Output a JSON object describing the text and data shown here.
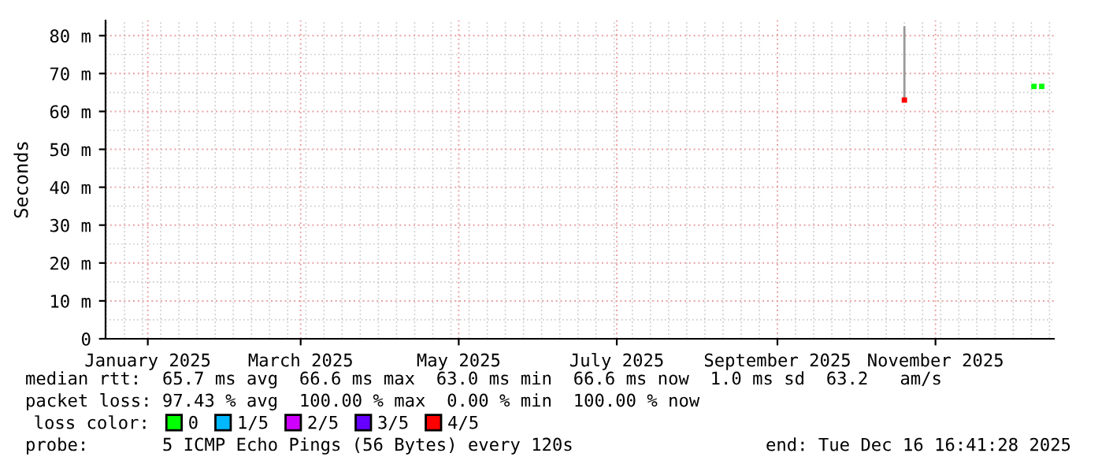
{
  "chart_data": {
    "type": "scatter",
    "ylabel": "Seconds",
    "xlim": [
      "2024-12-15T16:41",
      "2025-12-16T16:41"
    ],
    "xticks": [
      {
        "value": "2025-01-01",
        "label": "January 2025"
      },
      {
        "value": "2025-03-01",
        "label": "March 2025"
      },
      {
        "value": "2025-05-01",
        "label": "May 2025"
      },
      {
        "value": "2025-07-01",
        "label": "July 2025"
      },
      {
        "value": "2025-09-01",
        "label": "September 2025"
      },
      {
        "value": "2025-11-01",
        "label": "November 2025"
      }
    ],
    "ylim": [
      0,
      84
    ],
    "yticks": [
      0,
      {
        "value": 10,
        "label": "10 m"
      },
      {
        "value": 20,
        "label": "20 m"
      },
      {
        "value": 30,
        "label": "30 m"
      },
      {
        "value": 40,
        "label": "40 m"
      },
      {
        "value": 50,
        "label": "50 m"
      },
      {
        "value": 60,
        "label": "60 m"
      },
      {
        "value": 70,
        "label": "70 m"
      },
      {
        "value": 80,
        "label": "80 m"
      }
    ],
    "grid": true,
    "marker": "square",
    "legend": "bottom",
    "legend_title": "loss color:",
    "series": [
      {
        "name": "0",
        "color": "#00ff00",
        "x": [
          "2025-12-09",
          "2025-12-12"
        ],
        "values": [
          66.6,
          66.6
        ]
      },
      {
        "name": "1/5",
        "color": "#00b8ff"
      },
      {
        "name": "2/5",
        "color": "#d000ff"
      },
      {
        "name": "3/5",
        "color": "#6600ff"
      },
      {
        "name": "4/5",
        "color": "#ff0000",
        "x": [
          "2025-10-20"
        ],
        "values": [
          63.0
        ],
        "errors": [
          [
            63.0,
            82.5
          ]
        ]
      }
    ],
    "annotations": [
      "median rtt:  65.7 ms avg  66.6 ms max  63.0 ms min  66.6 ms now  1.0 ms sd  63.2   am/s",
      "packet loss: 97.43 % avg  100.00 % max  0.00 % min  100.00 % now",
      "probe:       5 ICMP Echo Pings (56 Bytes) every 120s",
      "end: Tue Dec 16 16:41:28 2025"
    ]
  }
}
